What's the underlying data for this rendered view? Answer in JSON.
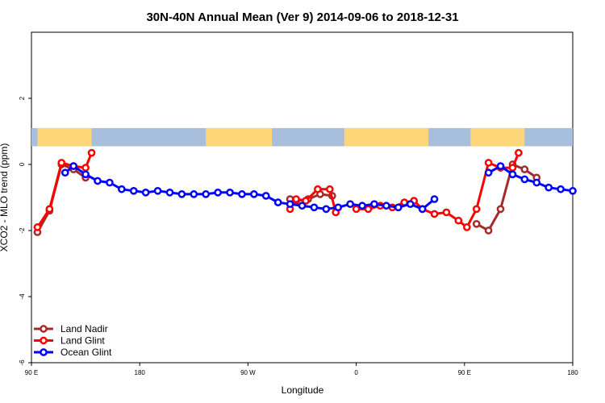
{
  "colors": {
    "land_nadir": "#a52a2a",
    "land_glint": "#ff0000",
    "ocean_glint": "#0000ff",
    "map_ocean": "#a7bfdd",
    "map_land": "#fdd679"
  },
  "chart_data": {
    "type": "line",
    "title": "30N-40N Annual Mean (Ver 9)   2014-09-06 to 2018-12-31",
    "xlabel": "Longitude",
    "ylabel": "XCO2 - MLO trend (ppm)",
    "xlim": [
      90,
      540
    ],
    "ylim": [
      -6,
      4
    ],
    "grid": false,
    "legend_position": "bottom-left",
    "x_ticks": [
      {
        "value": 90,
        "label": "90 E"
      },
      {
        "value": 180,
        "label": "180"
      },
      {
        "value": 270,
        "label": "90 W"
      },
      {
        "value": 360,
        "label": "0"
      },
      {
        "value": 450,
        "label": "90 E"
      },
      {
        "value": 540,
        "label": "180"
      }
    ],
    "y_ticks": [
      {
        "value": -6,
        "label": "-6"
      },
      {
        "value": -4,
        "label": "-4"
      },
      {
        "value": -2,
        "label": "-2"
      },
      {
        "value": 0,
        "label": "0"
      },
      {
        "value": 2,
        "label": "2"
      }
    ],
    "map_band": {
      "y_range": [
        0.55,
        1.1
      ],
      "land_lon_ranges": [
        [
          95,
          140
        ],
        [
          235,
          290
        ],
        [
          350,
          420
        ],
        [
          455,
          500
        ]
      ]
    },
    "series": [
      {
        "name": "Land Nadir",
        "color_key": "land_nadir",
        "segments": [
          [
            [
              95,
              -2.05
            ],
            [
              105,
              -1.4
            ],
            [
              115,
              0.0
            ],
            [
              125,
              -0.15
            ],
            [
              135,
              -0.4
            ]
          ],
          [
            [
              305,
              -1.05
            ],
            [
              310,
              -1.1
            ],
            [
              320,
              -1.05
            ],
            [
              330,
              -0.9
            ],
            [
              340,
              -0.95
            ]
          ],
          [
            [
              460,
              -1.8
            ],
            [
              470,
              -2.0
            ],
            [
              480,
              -1.35
            ],
            [
              490,
              0.0
            ],
            [
              500,
              -0.15
            ],
            [
              510,
              -0.4
            ]
          ]
        ]
      },
      {
        "name": "Land Glint",
        "color_key": "land_glint",
        "segments": [
          [
            [
              95,
              -1.9
            ],
            [
              105,
              -1.35
            ],
            [
              115,
              0.05
            ],
            [
              125,
              -0.05
            ],
            [
              135,
              -0.1
            ],
            [
              140,
              0.35
            ]
          ],
          [
            [
              305,
              -1.35
            ],
            [
              310,
              -1.05
            ],
            [
              318,
              -1.1
            ],
            [
              328,
              -0.75
            ],
            [
              338,
              -0.75
            ],
            [
              343,
              -1.45
            ]
          ],
          [
            [
              360,
              -1.35
            ],
            [
              370,
              -1.35
            ],
            [
              380,
              -1.25
            ],
            [
              390,
              -1.3
            ],
            [
              400,
              -1.15
            ],
            [
              408,
              -1.1
            ],
            [
              415,
              -1.35
            ],
            [
              425,
              -1.5
            ],
            [
              435,
              -1.45
            ],
            [
              445,
              -1.7
            ],
            [
              452,
              -1.9
            ],
            [
              460,
              -1.35
            ],
            [
              470,
              0.05
            ],
            [
              480,
              -0.1
            ],
            [
              490,
              -0.1
            ],
            [
              495,
              0.35
            ]
          ]
        ]
      },
      {
        "name": "Ocean Glint",
        "color_key": "ocean_glint",
        "segments": [
          [
            [
              118,
              -0.25
            ],
            [
              125,
              -0.05
            ],
            [
              135,
              -0.3
            ],
            [
              145,
              -0.5
            ],
            [
              155,
              -0.55
            ],
            [
              165,
              -0.75
            ],
            [
              175,
              -0.8
            ],
            [
              185,
              -0.85
            ],
            [
              195,
              -0.8
            ],
            [
              205,
              -0.85
            ],
            [
              215,
              -0.9
            ],
            [
              225,
              -0.9
            ],
            [
              235,
              -0.9
            ],
            [
              245,
              -0.85
            ],
            [
              255,
              -0.85
            ],
            [
              265,
              -0.9
            ],
            [
              275,
              -0.9
            ],
            [
              285,
              -0.95
            ],
            [
              295,
              -1.15
            ],
            [
              305,
              -1.2
            ],
            [
              315,
              -1.25
            ],
            [
              325,
              -1.3
            ],
            [
              335,
              -1.35
            ],
            [
              345,
              -1.3
            ],
            [
              355,
              -1.2
            ],
            [
              365,
              -1.25
            ],
            [
              375,
              -1.2
            ],
            [
              385,
              -1.25
            ],
            [
              395,
              -1.3
            ],
            [
              405,
              -1.2
            ],
            [
              415,
              -1.35
            ],
            [
              425,
              -1.05
            ]
          ],
          [
            [
              470,
              -0.25
            ],
            [
              480,
              -0.05
            ],
            [
              490,
              -0.3
            ],
            [
              500,
              -0.45
            ],
            [
              510,
              -0.55
            ],
            [
              520,
              -0.7
            ],
            [
              530,
              -0.75
            ],
            [
              540,
              -0.8
            ]
          ]
        ]
      }
    ]
  }
}
